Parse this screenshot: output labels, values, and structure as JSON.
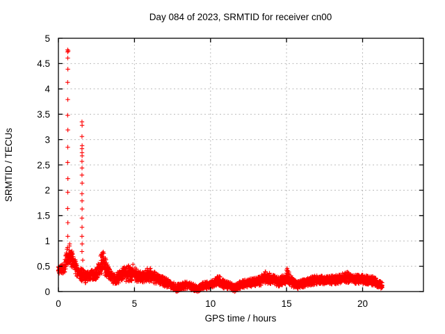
{
  "chart_data": {
    "type": "scatter",
    "title": "Day 084 of 2023, SRMTID for receiver cn00",
    "xlabel": "GPS time / hours",
    "ylabel": "SRMTID / TECUs",
    "xlim": [
      0,
      24
    ],
    "ylim": [
      0,
      5
    ],
    "xticks": {
      "values": [
        0,
        5,
        10,
        15,
        20
      ],
      "labels": [
        "0",
        "5",
        "10",
        "15",
        "20"
      ]
    },
    "yticks": {
      "values": [
        0,
        0.5,
        1,
        1.5,
        2,
        2.5,
        3,
        3.5,
        4,
        4.5,
        5
      ],
      "labels": [
        "0",
        "0.5",
        "1",
        "1.5",
        "2",
        "2.5",
        "3",
        "3.5",
        "4",
        "4.5",
        "5"
      ]
    },
    "grid": true,
    "legend": "none",
    "marker": "plus",
    "marker_color": "#ff0000",
    "grid_color": "#b9b9b9",
    "axis_color": "#000000",
    "series_name": "SRMTID",
    "data_start_hour": 0.0,
    "data_end_hour": 21.3,
    "points_per_hour": 140,
    "spike_points": [
      [
        0.61,
        4.77
      ],
      [
        0.645,
        4.75
      ],
      [
        0.61,
        4.73
      ],
      [
        0.615,
        4.61
      ],
      [
        0.62,
        4.39
      ],
      [
        0.61,
        4.13
      ],
      [
        0.615,
        3.79
      ],
      [
        0.61,
        3.48
      ],
      [
        0.62,
        3.19
      ],
      [
        0.615,
        2.85
      ],
      [
        0.61,
        2.55
      ],
      [
        0.62,
        2.23
      ],
      [
        0.615,
        1.96
      ],
      [
        0.61,
        1.64
      ],
      [
        0.62,
        1.36
      ],
      [
        0.615,
        1.09
      ],
      [
        1.55,
        3.35
      ],
      [
        1.56,
        3.28
      ],
      [
        1.55,
        3.06
      ],
      [
        1.56,
        2.88
      ],
      [
        1.55,
        2.82
      ],
      [
        1.555,
        2.74
      ],
      [
        1.56,
        2.68
      ],
      [
        1.55,
        2.57
      ],
      [
        1.555,
        2.44
      ],
      [
        1.55,
        2.3
      ],
      [
        1.56,
        2.14
      ],
      [
        1.55,
        1.93
      ],
      [
        1.555,
        1.79
      ],
      [
        1.56,
        1.63
      ],
      [
        1.55,
        1.45
      ],
      [
        1.555,
        1.27
      ],
      [
        1.55,
        1.09
      ],
      [
        1.56,
        0.94
      ],
      [
        1.55,
        0.79
      ],
      [
        1.6,
        0.62
      ]
    ],
    "zero_dip_points": [
      [
        7.72,
        0.01
      ],
      [
        7.78,
        0.0
      ],
      [
        7.85,
        0.01
      ],
      [
        7.9,
        0.02
      ],
      [
        9.08,
        0.01
      ],
      [
        9.15,
        0.0
      ],
      [
        9.22,
        0.01
      ],
      [
        11.5,
        0.02
      ],
      [
        11.58,
        0.0
      ],
      [
        11.65,
        0.01
      ]
    ],
    "band_envelope": [
      [
        0.0,
        0.36,
        0.5
      ],
      [
        0.3,
        0.36,
        0.55
      ],
      [
        0.5,
        0.4,
        0.75
      ],
      [
        0.62,
        0.45,
        0.92
      ],
      [
        0.75,
        0.5,
        0.95
      ],
      [
        0.9,
        0.45,
        0.85
      ],
      [
        1.05,
        0.38,
        0.68
      ],
      [
        1.2,
        0.3,
        0.55
      ],
      [
        1.4,
        0.22,
        0.48
      ],
      [
        1.6,
        0.2,
        0.45
      ],
      [
        1.8,
        0.16,
        0.38
      ],
      [
        2.1,
        0.22,
        0.42
      ],
      [
        2.5,
        0.24,
        0.45
      ],
      [
        2.75,
        0.3,
        0.7
      ],
      [
        2.95,
        0.35,
        0.8
      ],
      [
        3.15,
        0.3,
        0.6
      ],
      [
        3.4,
        0.18,
        0.42
      ],
      [
        3.7,
        0.15,
        0.36
      ],
      [
        4.0,
        0.17,
        0.4
      ],
      [
        4.3,
        0.2,
        0.5
      ],
      [
        4.6,
        0.2,
        0.52
      ],
      [
        4.9,
        0.22,
        0.55
      ],
      [
        5.2,
        0.18,
        0.42
      ],
      [
        5.6,
        0.18,
        0.38
      ],
      [
        5.9,
        0.2,
        0.48
      ],
      [
        6.2,
        0.18,
        0.45
      ],
      [
        6.5,
        0.14,
        0.34
      ],
      [
        7.0,
        0.1,
        0.28
      ],
      [
        7.4,
        0.06,
        0.22
      ],
      [
        7.75,
        0.0,
        0.14
      ],
      [
        8.1,
        0.04,
        0.18
      ],
      [
        8.5,
        0.06,
        0.2
      ],
      [
        8.85,
        0.02,
        0.16
      ],
      [
        9.15,
        0.0,
        0.1
      ],
      [
        9.5,
        0.04,
        0.18
      ],
      [
        9.9,
        0.06,
        0.2
      ],
      [
        10.3,
        0.1,
        0.26
      ],
      [
        10.55,
        0.12,
        0.32
      ],
      [
        10.9,
        0.06,
        0.22
      ],
      [
        11.3,
        0.04,
        0.18
      ],
      [
        11.55,
        0.0,
        0.13
      ],
      [
        11.9,
        0.04,
        0.2
      ],
      [
        12.3,
        0.08,
        0.24
      ],
      [
        12.8,
        0.1,
        0.26
      ],
      [
        13.3,
        0.12,
        0.3
      ],
      [
        13.6,
        0.16,
        0.42
      ],
      [
        14.0,
        0.14,
        0.34
      ],
      [
        14.5,
        0.1,
        0.28
      ],
      [
        14.9,
        0.14,
        0.34
      ],
      [
        15.05,
        0.18,
        0.48
      ],
      [
        15.3,
        0.1,
        0.3
      ],
      [
        15.7,
        0.05,
        0.2
      ],
      [
        16.1,
        0.08,
        0.24
      ],
      [
        16.5,
        0.12,
        0.28
      ],
      [
        17.0,
        0.14,
        0.32
      ],
      [
        17.5,
        0.14,
        0.3
      ],
      [
        18.0,
        0.14,
        0.32
      ],
      [
        18.5,
        0.15,
        0.33
      ],
      [
        18.95,
        0.18,
        0.4
      ],
      [
        19.3,
        0.15,
        0.32
      ],
      [
        19.8,
        0.16,
        0.34
      ],
      [
        20.2,
        0.14,
        0.32
      ],
      [
        20.7,
        0.12,
        0.3
      ],
      [
        21.0,
        0.08,
        0.24
      ],
      [
        21.3,
        0.05,
        0.18
      ]
    ]
  }
}
